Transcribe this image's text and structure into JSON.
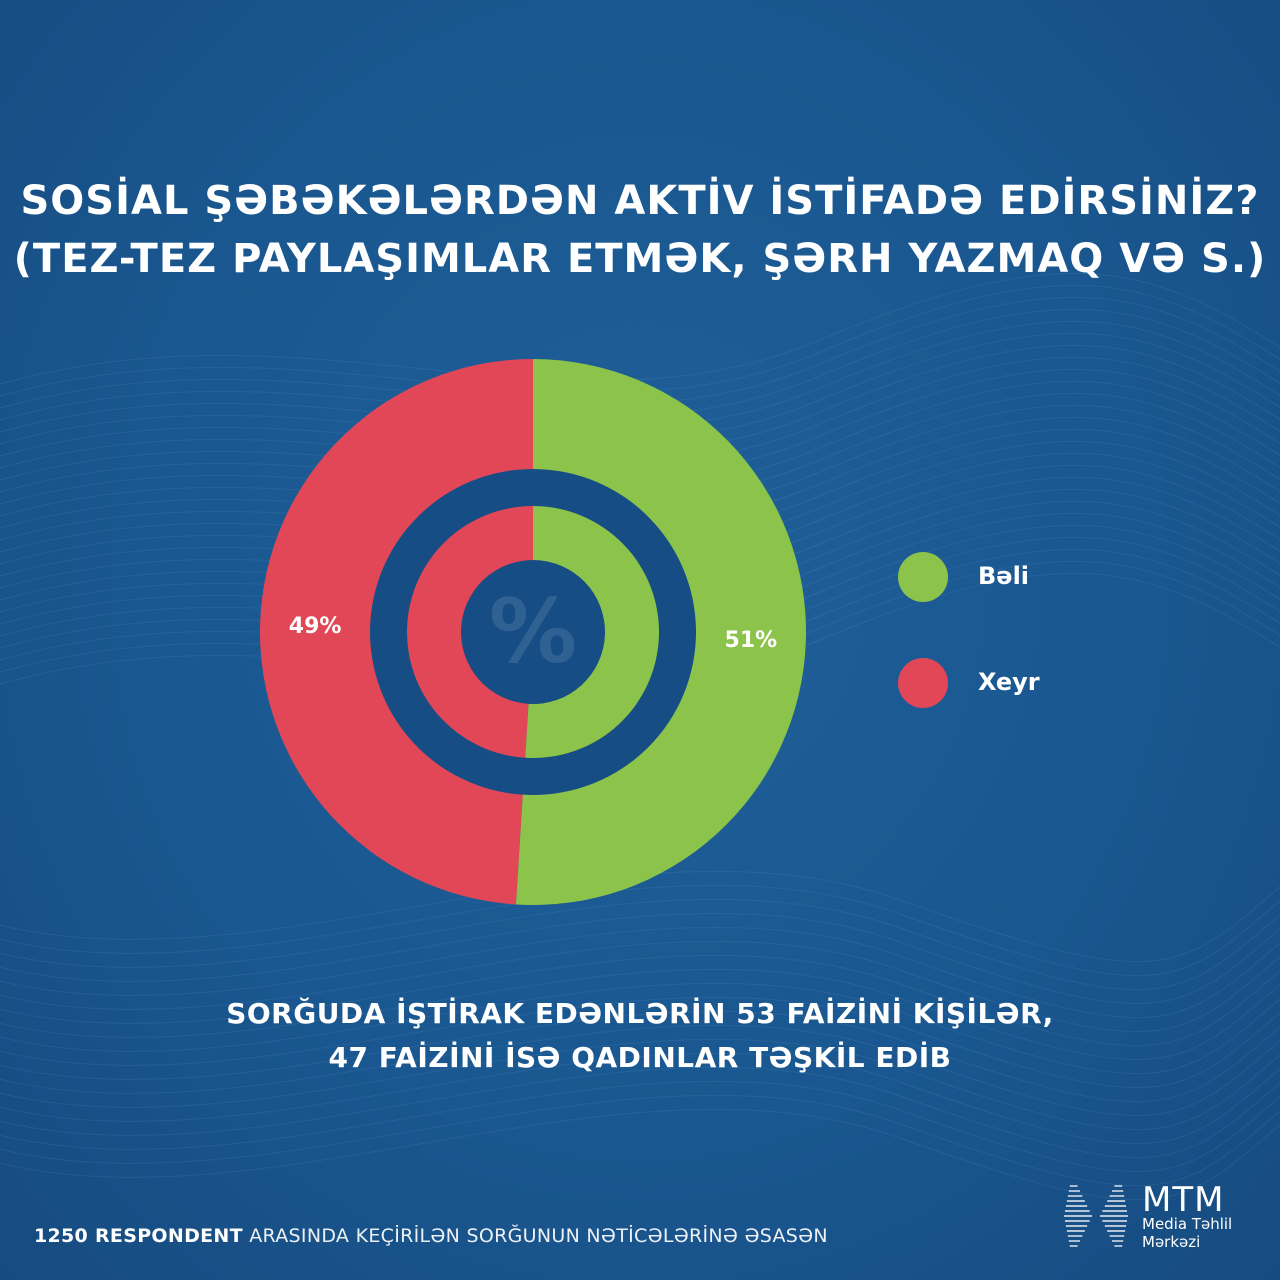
{
  "title": {
    "line1": "SOSİAL ŞƏBƏKƏLƏRDƏN AKTİV İSTİFADƏ EDİRSİNİZ?",
    "line2": "(TEZ-TEZ PAYLAŞIMLAR ETMƏK, ŞƏRH YAZMAQ VƏ S.)"
  },
  "chart_data": {
    "type": "pie",
    "categories": [
      "Bəli",
      "Xeyr"
    ],
    "values": [
      51,
      49
    ],
    "value_labels": [
      "51%",
      "49%"
    ],
    "colors": [
      "#8cc34a",
      "#e24757"
    ],
    "center_symbol": "%",
    "legend_position": "right"
  },
  "summary": {
    "line1": "SORĞUDA İŞTİRAK EDƏNLƏRİN 53 FAİZİNİ KİŞİLƏR,",
    "line2": "47 FAİZİNİ İSƏ QADINLAR TƏŞKİL EDİB"
  },
  "footer": {
    "bold": "1250 RESPONDENT",
    "rest": "ARASINDA KEÇİRİLƏN SORĞUNUN NƏTİCƏLƏRİNƏ ƏSASƏN"
  },
  "logo": {
    "name": "MTM",
    "line1": "Media Təhlil",
    "line2": "Mərkəzi"
  }
}
